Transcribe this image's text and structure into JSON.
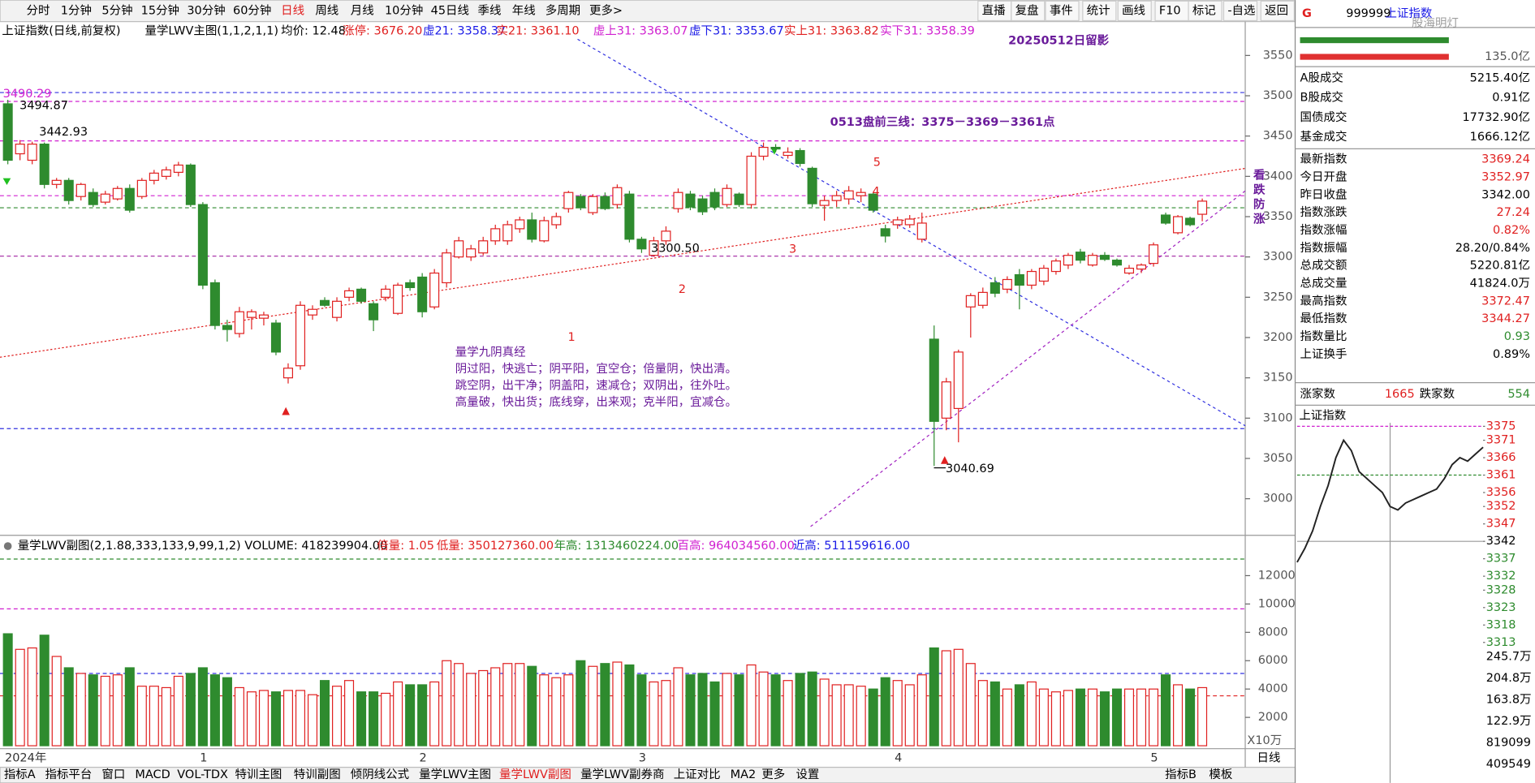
{
  "toolbar": {
    "periods": [
      {
        "label": "分时"
      },
      {
        "label": "1分钟"
      },
      {
        "label": "5分钟"
      },
      {
        "label": "15分钟"
      },
      {
        "label": "30分钟"
      },
      {
        "label": "60分钟"
      },
      {
        "label": "日线",
        "active": true
      },
      {
        "label": "周线"
      },
      {
        "label": "月线"
      },
      {
        "label": "10分钟"
      },
      {
        "label": "45日线"
      },
      {
        "label": "季线"
      },
      {
        "label": "年线"
      },
      {
        "label": "多周期"
      },
      {
        "label": "更多>"
      }
    ],
    "tools": [
      "直播",
      "复盘",
      "事件",
      "统计",
      "画线",
      "F10",
      "标记",
      "-自选",
      "返回"
    ]
  },
  "info_bar": {
    "items": [
      {
        "text": "上证指数(日线,前复权)",
        "color": "#000000"
      },
      {
        "text": "量学LWV主图(1,1,2,1,1)",
        "color": "#000000"
      },
      {
        "text": "均价: 12.48",
        "color": "#000000"
      },
      {
        "text": "涨停: 3676.20",
        "color": "#e02020"
      },
      {
        "text": "虚21: 3358.37",
        "color": "#1a1ae6"
      },
      {
        "text": "实21: 3361.10",
        "color": "#e02020"
      },
      {
        "text": "虚上31: 3363.07",
        "color": "#d020d0"
      },
      {
        "text": "虚下31: 3353.67",
        "color": "#1a1ae6"
      },
      {
        "text": "实上31: 3363.82",
        "color": "#e02020"
      },
      {
        "text": "实下31: 3358.39",
        "color": "#d020d0"
      }
    ]
  },
  "main_chart": {
    "type": "candlestick",
    "categories": [
      "2024年",
      null,
      null,
      null,
      null,
      null,
      null,
      null,
      null,
      null,
      null,
      null,
      null,
      null,
      null,
      null,
      "1",
      null,
      null,
      null,
      null,
      null,
      null,
      null,
      null,
      null,
      null,
      null,
      null,
      null,
      null,
      null,
      null,
      null,
      "2",
      null,
      null,
      null,
      null,
      null,
      null,
      null,
      null,
      null,
      null,
      null,
      null,
      null,
      null,
      null,
      null,
      null,
      "3",
      null,
      null,
      null,
      null,
      null,
      null,
      null,
      null,
      null,
      null,
      null,
      null,
      null,
      null,
      null,
      null,
      null,
      null,
      null,
      null,
      "4",
      null,
      null,
      null,
      null,
      null,
      null,
      null,
      null,
      null,
      null,
      null,
      null,
      null,
      null,
      null,
      null,
      null,
      null,
      null,
      null,
      "5",
      null,
      null,
      null,
      null
    ],
    "candles": [
      [
        3490,
        3495,
        3415,
        3420
      ],
      [
        3428,
        3445,
        3420,
        3440
      ],
      [
        3420,
        3443,
        3415,
        3440
      ],
      [
        3440,
        3442,
        3385,
        3390
      ],
      [
        3390,
        3398,
        3385,
        3395
      ],
      [
        3395,
        3398,
        3365,
        3370
      ],
      [
        3375,
        3392,
        3370,
        3390
      ],
      [
        3380,
        3385,
        3362,
        3365
      ],
      [
        3368,
        3382,
        3365,
        3378
      ],
      [
        3372,
        3388,
        3370,
        3385
      ],
      [
        3385,
        3390,
        3355,
        3358
      ],
      [
        3375,
        3398,
        3372,
        3395
      ],
      [
        3395,
        3408,
        3390,
        3404
      ],
      [
        3400,
        3412,
        3396,
        3408
      ],
      [
        3405,
        3418,
        3400,
        3414
      ],
      [
        3414,
        3416,
        3362,
        3365
      ],
      [
        3365,
        3368,
        3260,
        3265
      ],
      [
        3268,
        3272,
        3210,
        3215
      ],
      [
        3215,
        3222,
        3195,
        3210
      ],
      [
        3205,
        3238,
        3200,
        3232
      ],
      [
        3225,
        3235,
        3210,
        3232
      ],
      [
        3224,
        3232,
        3215,
        3228
      ],
      [
        3218,
        3222,
        3178,
        3182
      ],
      [
        3150,
        3168,
        3143,
        3162
      ],
      [
        3165,
        3245,
        3160,
        3240
      ],
      [
        3228,
        3240,
        3222,
        3235
      ],
      [
        3246,
        3250,
        3238,
        3240
      ],
      [
        3225,
        3250,
        3220,
        3245
      ],
      [
        3250,
        3262,
        3245,
        3258
      ],
      [
        3260,
        3262,
        3242,
        3245
      ],
      [
        3242,
        3245,
        3208,
        3222
      ],
      [
        3250,
        3265,
        3245,
        3260
      ],
      [
        3230,
        3268,
        3228,
        3265
      ],
      [
        3268,
        3272,
        3258,
        3262
      ],
      [
        3275,
        3280,
        3225,
        3232
      ],
      [
        3238,
        3285,
        3235,
        3280
      ],
      [
        3268,
        3310,
        3262,
        3305
      ],
      [
        3300,
        3325,
        3298,
        3320
      ],
      [
        3300,
        3315,
        3295,
        3310
      ],
      [
        3305,
        3325,
        3302,
        3320
      ],
      [
        3320,
        3340,
        3315,
        3335
      ],
      [
        3320,
        3345,
        3315,
        3340
      ],
      [
        3335,
        3350,
        3330,
        3346
      ],
      [
        3346,
        3355,
        3318,
        3322
      ],
      [
        3320,
        3350,
        3318,
        3345
      ],
      [
        3340,
        3355,
        3335,
        3350
      ],
      [
        3360,
        3382,
        3355,
        3380
      ],
      [
        3375,
        3378,
        3358,
        3361
      ],
      [
        3355,
        3378,
        3352,
        3375
      ],
      [
        3375,
        3380,
        3358,
        3360
      ],
      [
        3365,
        3390,
        3360,
        3386
      ],
      [
        3378,
        3382,
        3318,
        3322
      ],
      [
        3322,
        3325,
        3305,
        3310
      ],
      [
        3302,
        3325,
        3300.5,
        3320
      ],
      [
        3320,
        3338,
        3315,
        3332
      ],
      [
        3360,
        3385,
        3355,
        3380
      ],
      [
        3378,
        3382,
        3358,
        3362
      ],
      [
        3372,
        3376,
        3352,
        3356
      ],
      [
        3380,
        3385,
        3358,
        3362
      ],
      [
        3365,
        3390,
        3362,
        3385
      ],
      [
        3378,
        3380,
        3362,
        3365
      ],
      [
        3365,
        3430,
        3360,
        3425
      ],
      [
        3425,
        3442,
        3420,
        3436
      ],
      [
        3436,
        3440,
        3430,
        3434
      ],
      [
        3426,
        3436,
        3422,
        3430
      ],
      [
        3432,
        3435,
        3412,
        3416
      ],
      [
        3410,
        3412,
        3362,
        3366
      ],
      [
        3364,
        3376,
        3345,
        3370
      ],
      [
        3370,
        3382,
        3362,
        3376
      ],
      [
        3372,
        3388,
        3365,
        3382
      ],
      [
        3376,
        3385,
        3368,
        3380
      ],
      [
        3378,
        3380,
        3355,
        3358
      ],
      [
        3335,
        3340,
        3318,
        3326
      ],
      [
        3340,
        3350,
        3335,
        3346
      ],
      [
        3340,
        3352,
        3336,
        3347
      ],
      [
        3322,
        3355,
        3318,
        3342
      ],
      [
        3198,
        3215,
        3040.69,
        3096
      ],
      [
        3100,
        3150,
        3085,
        3145
      ],
      [
        3112,
        3185,
        3070,
        3182
      ],
      [
        3238,
        3255,
        3200,
        3252
      ],
      [
        3240,
        3262,
        3236,
        3256
      ],
      [
        3268,
        3275,
        3250,
        3255
      ],
      [
        3260,
        3276,
        3255,
        3272
      ],
      [
        3278,
        3285,
        3235,
        3265
      ],
      [
        3265,
        3285,
        3260,
        3282
      ],
      [
        3270,
        3290,
        3265,
        3286
      ],
      [
        3282,
        3298,
        3278,
        3295
      ],
      [
        3290,
        3305,
        3285,
        3302
      ],
      [
        3306,
        3310,
        3292,
        3296
      ],
      [
        3290,
        3305,
        3288,
        3302
      ],
      [
        3302,
        3306,
        3295,
        3297
      ],
      [
        3296,
        3298,
        3288,
        3290
      ],
      [
        3280,
        3290,
        3278,
        3286
      ],
      [
        3285,
        3292,
        3280,
        3290
      ],
      [
        3292,
        3318,
        3288,
        3315
      ],
      [
        3352,
        3355,
        3340,
        3342
      ],
      [
        3330,
        3352,
        3328,
        3350
      ],
      [
        3348,
        3350,
        3338,
        3340
      ],
      [
        3352.97,
        3372.47,
        3344.27,
        3369.24
      ]
    ],
    "ylim": [
      2957,
      3592
    ],
    "yticks": [
      3000,
      3050,
      3100,
      3150,
      3200,
      3250,
      3300,
      3350,
      3400,
      3450,
      3500,
      3550
    ],
    "up_color": "#e02020",
    "down_color": "#2e8b2e",
    "levels": [
      {
        "value": 3504,
        "color": "#3030e0"
      },
      {
        "value": 3493,
        "color": "#d020d0"
      },
      {
        "value": 3444,
        "color": "#d020d0"
      },
      {
        "value": 3376,
        "color": "#d020d0"
      },
      {
        "value": 3361,
        "color": "#2e8b2e"
      },
      {
        "value": 3301,
        "color": "#a020a0"
      },
      {
        "value": 3087,
        "color": "#3030e0"
      }
    ],
    "price_labels": [
      "3490.29",
      "3494.87",
      "3442.93",
      "3300.50",
      "3040.69"
    ],
    "wave_labels": [
      "1",
      "2",
      "3",
      "4",
      "5"
    ],
    "title_note": "20250512日留影",
    "plan_note": "0513盘前三线：3375－3369－3361点",
    "side_note": "看跌防涨",
    "verse": [
      "量学九阴真经",
      "阴过阳，快逃亡；阴平阳，宜空仓；倍量阴，快出清。",
      "跳空阴，出干净；阴盖阳，速减仓；双阴出，往外吐。",
      "高量破，快出货；底线穿，出来观；克半阳，宜减仓。"
    ]
  },
  "volume_chart": {
    "type": "bar",
    "header": [
      {
        "text": "量学LWV副图(2,1.88,333,133,9,99,1,2) VOLUME: 418239904.00",
        "color": "#000000"
      },
      {
        "text": "倍量: 1.05",
        "color": "#e02020"
      },
      {
        "text": "低量: 350127360.00",
        "color": "#e02020"
      },
      {
        "text": "年高: 1313460224.00",
        "color": "#2e8b2e"
      },
      {
        "text": "百高: 964034560.00",
        "color": "#d020d0"
      },
      {
        "text": "近高: 511159616.00",
        "color": "#1a1ae6"
      }
    ],
    "values": [
      7900,
      6800,
      6900,
      7800,
      6300,
      5500,
      5100,
      5000,
      4900,
      5000,
      5500,
      4200,
      4200,
      4100,
      4900,
      5100,
      5500,
      5000,
      4800,
      4100,
      3800,
      3900,
      3800,
      3900,
      3900,
      3600,
      4600,
      4200,
      4600,
      3800,
      3800,
      3700,
      4500,
      4300,
      4300,
      4500,
      6000,
      5800,
      5100,
      5300,
      5500,
      5800,
      5800,
      5600,
      5000,
      4800,
      5000,
      6000,
      5600,
      5800,
      5900,
      5700,
      5000,
      4500,
      4600,
      5500,
      5000,
      5100,
      4500,
      5100,
      5000,
      5700,
      5200,
      5000,
      4600,
      5100,
      5200,
      4700,
      4300,
      4300,
      4200,
      4000,
      4800,
      4600,
      4300,
      5000,
      6900,
      6700,
      6800,
      5800,
      4600,
      4500,
      4000,
      4300,
      4500,
      4000,
      3800,
      3900,
      4000,
      4000,
      3800,
      4000,
      4000,
      4000,
      4000,
      5000,
      4300,
      4000,
      4100
    ],
    "ylim": [
      0,
      13600
    ],
    "yticks": [
      2000,
      4000,
      6000,
      8000,
      10000,
      12000
    ],
    "levels": [
      {
        "value": 13170,
        "color": "#2e8b2e"
      },
      {
        "value": 9655,
        "color": "#d020d0"
      },
      {
        "value": 5100,
        "color": "#3030e0"
      },
      {
        "value": 3520,
        "color": "#e02020"
      }
    ],
    "unit": "X10万",
    "period": "日线"
  },
  "bottom_tabs": {
    "left": [
      {
        "label": "指标A"
      },
      {
        "label": "指标平台"
      },
      {
        "label": "窗口"
      },
      {
        "label": "MACD"
      },
      {
        "label": "VOL-TDX"
      },
      {
        "label": "特训主图"
      },
      {
        "label": "特训副图"
      },
      {
        "label": "倾阴线公式"
      },
      {
        "label": "量学LWV主图"
      },
      {
        "label": "量学LWV副图",
        "active": true
      },
      {
        "label": "量学LWV副券商"
      },
      {
        "label": "上证对比"
      },
      {
        "label": "MA2"
      },
      {
        "label": "更多"
      },
      {
        "label": "设置"
      }
    ],
    "right": [
      "指标B",
      "模板"
    ]
  },
  "quote_panel": {
    "flag": "G",
    "code": "999999",
    "name": "上证指数",
    "watermark": "股海明灯",
    "bar_value": "135.0亿",
    "rows": [
      {
        "label": "A股成交",
        "value": "5215.40亿",
        "color": "#000000"
      },
      {
        "label": "B股成交",
        "value": "0.91亿",
        "color": "#000000"
      },
      {
        "label": "国债成交",
        "value": "17732.90亿",
        "color": "#000000"
      },
      {
        "label": "基金成交",
        "value": "1666.12亿",
        "color": "#000000"
      },
      {
        "label": "最新指数",
        "value": "3369.24",
        "color": "#e02020"
      },
      {
        "label": "今日开盘",
        "value": "3352.97",
        "color": "#e02020"
      },
      {
        "label": "昨日收盘",
        "value": "3342.00",
        "color": "#000000"
      },
      {
        "label": "指数涨跌",
        "value": "27.24",
        "color": "#e02020"
      },
      {
        "label": "指数涨幅",
        "value": "0.82%",
        "color": "#e02020"
      },
      {
        "label": "指数振幅",
        "value": "28.20/0.84%",
        "color": "#000000"
      },
      {
        "label": "总成交额",
        "value": "5220.81亿",
        "color": "#000000"
      },
      {
        "label": "总成交量",
        "value": "41824.0万",
        "color": "#000000"
      },
      {
        "label": "最高指数",
        "value": "3372.47",
        "color": "#e02020"
      },
      {
        "label": "最低指数",
        "value": "3344.27",
        "color": "#e02020"
      },
      {
        "label": "指数量比",
        "value": "0.93",
        "color": "#2e8b2e"
      },
      {
        "label": "上证换手",
        "value": "0.89%",
        "color": "#000000"
      }
    ],
    "breadth": {
      "up_label": "涨家数",
      "up": "1665",
      "down_label": "跌家数",
      "down": "554"
    },
    "intraday": {
      "type": "line",
      "title": "上证指数",
      "color": "#222222",
      "prev_close": 3342,
      "values": [
        3336,
        3340,
        3345,
        3352,
        3358,
        3366,
        3371,
        3368,
        3362,
        3360,
        3358,
        3356,
        3352,
        3351,
        3353,
        3354,
        3355,
        3356,
        3357,
        3360,
        3364,
        3366,
        3365,
        3367,
        3369
      ],
      "ylim": [
        3312,
        3376
      ],
      "yticks": [
        3375,
        3371,
        3366,
        3361,
        3356,
        3352,
        3347,
        3342,
        3337,
        3332,
        3328,
        3323,
        3318,
        3313
      ],
      "levels": [
        {
          "value": 3375,
          "color": "#d020d0"
        },
        {
          "value": 3361,
          "color": "#2e8b2e"
        }
      ],
      "volume_labels": [
        "245.7万",
        "204.8万",
        "163.8万",
        "122.9万",
        "819099",
        "409549"
      ]
    }
  }
}
